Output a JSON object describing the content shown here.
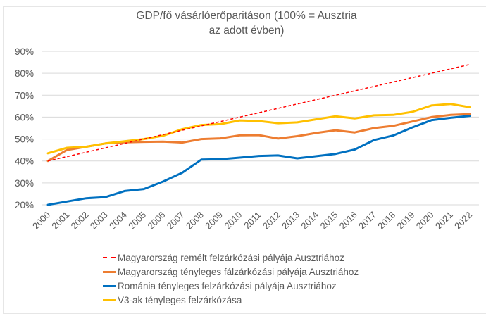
{
  "chart_data": {
    "type": "line",
    "title": "GDP/fő vásárlóerőparitáson (100% = Ausztria az adott évben)",
    "title_lines": [
      "GDP/fő vásárlóerőparitáson (100% = Ausztria",
      "az adott évben)"
    ],
    "xlabel": "",
    "ylabel": "",
    "ylim": [
      20,
      90
    ],
    "ytick_values": [
      20,
      30,
      40,
      50,
      60,
      70,
      80,
      90
    ],
    "ytick_labels": [
      "20%",
      "30%",
      "40%",
      "50%",
      "60%",
      "70%",
      "80%",
      "90%"
    ],
    "grid": true,
    "legend_position": "bottom",
    "x": [
      "2000",
      "2001",
      "2002",
      "2003",
      "2004",
      "2005",
      "2006",
      "2007",
      "2008",
      "2009",
      "2010",
      "2011",
      "2012",
      "2013",
      "2014",
      "2015",
      "2016",
      "2017",
      "2018",
      "2019",
      "2020",
      "2021",
      "2022"
    ],
    "series": [
      {
        "name": "Magyarország remélt felzárkózási pályája Ausztriához",
        "color": "#ff0000",
        "style": "dashed",
        "values": [
          40,
          42,
          44,
          46,
          48,
          50,
          52,
          54,
          56,
          58,
          60,
          62,
          64,
          66,
          68,
          70,
          72,
          74,
          76,
          78,
          80,
          82,
          84
        ]
      },
      {
        "name": "Magyarország tényleges fálzárkózási pályája Ausztriához",
        "color": "#ed7d31",
        "style": "solid",
        "values": [
          40,
          45,
          46.5,
          48,
          48.5,
          48.7,
          48.8,
          48.4,
          50,
          50.3,
          51.7,
          51.8,
          50.2,
          51.3,
          52.8,
          54,
          53,
          55,
          56,
          58,
          60,
          61,
          61.4
        ]
      },
      {
        "name": "Románia tényleges felzárkózási pályája Ausztriához",
        "color": "#0070c0",
        "style": "solid",
        "values": [
          20,
          21.5,
          23,
          23.5,
          26.3,
          27.2,
          30.6,
          34.6,
          40.6,
          40.8,
          41.5,
          42.3,
          42.5,
          41.2,
          42.2,
          43.2,
          45.2,
          49.5,
          51.6,
          55.3,
          58.6,
          59.7,
          60.6
        ]
      },
      {
        "name": "V3-ak tényleges felzárkózása",
        "color": "#ffc000",
        "style": "solid",
        "values": [
          43.5,
          46,
          46.5,
          48,
          49,
          50,
          51.5,
          54.5,
          56.4,
          56.8,
          58.5,
          58.2,
          57.2,
          57.6,
          59,
          60.4,
          59.4,
          60.8,
          61,
          62.4,
          65.3,
          66,
          64.5
        ]
      }
    ]
  },
  "colors": {
    "text": "#595959",
    "grid": "#d9d9d9"
  }
}
